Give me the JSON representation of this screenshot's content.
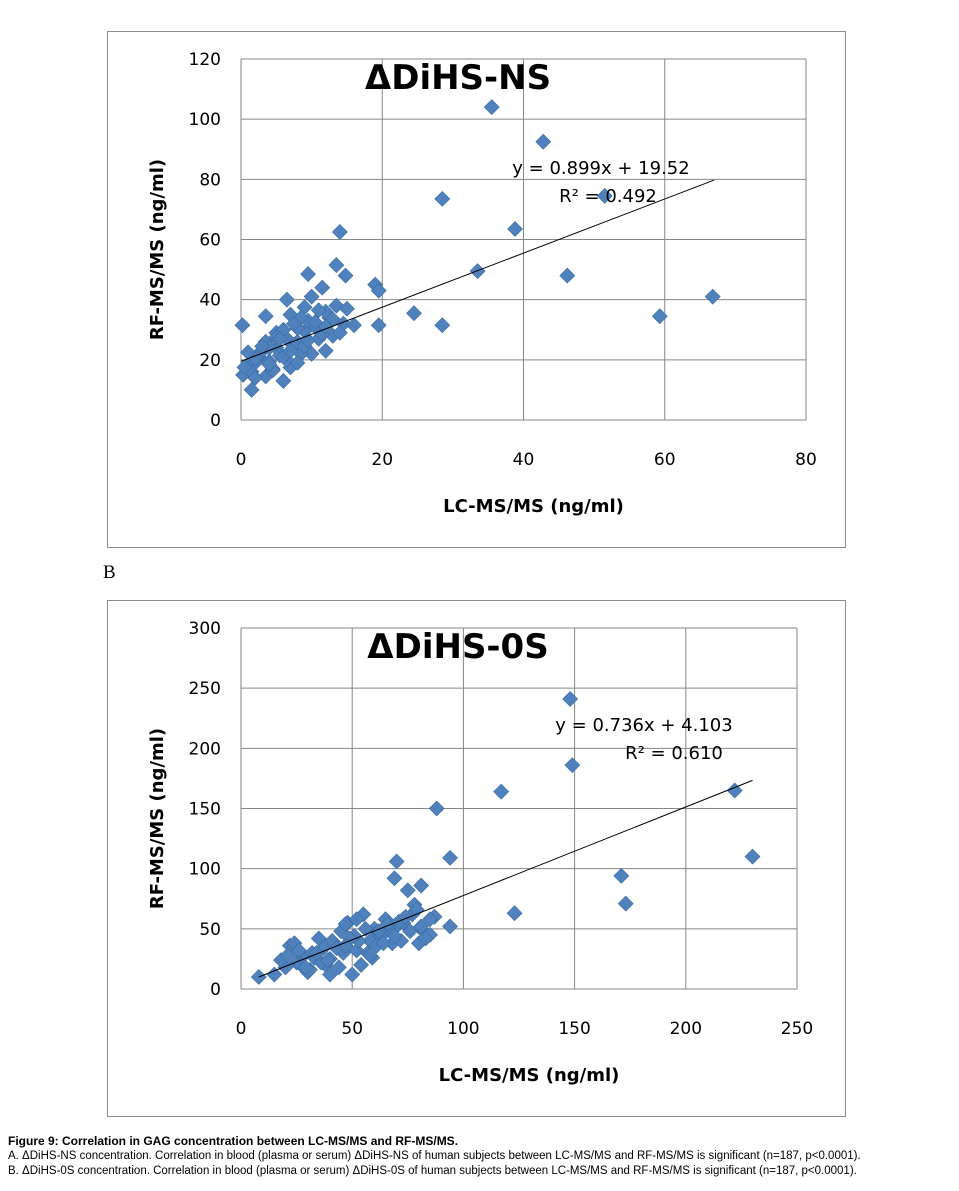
{
  "charts": [
    {
      "panel": "",
      "chart_data": {
        "type": "scatter",
        "title": "ΔDiHS-NS",
        "xlabel": "LC-MS/MS (ng/ml)",
        "ylabel": "RF-MS/MS (ng/ml)",
        "xlim": [
          0,
          80
        ],
        "ylim": [
          0,
          120
        ],
        "xticks": [
          "0",
          "20",
          "40",
          "60",
          "80"
        ],
        "yticks": [
          "0",
          "20",
          "40",
          "60",
          "80",
          "100",
          "120"
        ],
        "grid": true,
        "legend": "none",
        "marker_color": "#4f81bd",
        "trendline": {
          "slope": 0.899,
          "intercept": 19.52,
          "x_range": [
            0,
            67
          ],
          "equation": "y = 0.899x + 19.52",
          "r2": "R² = 0.492"
        },
        "series": [
          {
            "x": [
              35.5,
              42.8,
              51.5,
              28.5,
              38.8,
              33.5,
              46.2,
              24.5,
              28.5,
              59.3,
              66.8,
              14.0,
              9.5,
              13.5,
              14.8,
              19.0,
              19.5,
              19.5,
              0.2,
              0.3,
              1.5,
              3.5,
              6.0,
              7.0,
              10.0,
              12.0,
              13.0,
              14.5,
              16.0,
              11.5,
              2.5,
              4.0,
              5.0,
              6.5,
              8.0,
              9.0,
              10.5,
              12.5,
              1.0,
              3.0,
              4.5,
              5.5,
              7.5,
              8.5,
              11.0,
              12.0,
              2.0,
              3.5,
              5.0,
              6.5,
              8.0,
              9.5,
              11.5,
              13.5,
              1.5,
              2.5,
              4.0,
              6.0,
              7.0,
              9.0,
              10.5,
              0.5,
              2.0,
              3.0,
              5.0,
              6.5,
              8.5,
              10.0,
              1.0,
              3.5,
              5.5,
              7.5,
              9.0,
              11.0,
              13.0,
              14.0,
              15.0,
              4.5,
              6.0,
              8.0,
              2.0,
              4.0,
              7.0,
              9.5,
              12.0
            ],
            "y": [
              104.0,
              92.5,
              74.5,
              73.5,
              63.5,
              49.5,
              48.0,
              35.5,
              31.5,
              34.5,
              41.0,
              62.5,
              48.5,
              51.5,
              48.0,
              45.0,
              43.0,
              31.5,
              31.5,
              15.0,
              10.0,
              14.5,
              13.0,
              17.5,
              22.0,
              23.0,
              28.0,
              32.0,
              31.5,
              44.0,
              21.0,
              19.5,
              24.0,
              27.0,
              26.0,
              29.5,
              31.0,
              34.0,
              18.0,
              23.0,
              17.0,
              21.5,
              25.0,
              22.0,
              27.0,
              36.0,
              19.0,
              26.0,
              29.0,
              20.0,
              30.5,
              33.0,
              28.5,
              38.0,
              16.0,
              22.0,
              24.0,
              30.0,
              35.0,
              37.5,
              32.5,
              17.5,
              20.5,
              24.5,
              27.5,
              40.0,
              34.0,
              41.0,
              22.5,
              34.5,
              27.0,
              32.0,
              24.5,
              36.5,
              33.5,
              29.0,
              37.0,
              16.5,
              21.0,
              19.0,
              14.0,
              18.5,
              23.0,
              26.5,
              31.0
            ]
          }
        ]
      }
    },
    {
      "panel": "B",
      "chart_data": {
        "type": "scatter",
        "title": "ΔDiHS-0S",
        "xlabel": "LC-MS/MS (ng/ml)",
        "ylabel": "RF-MS/MS (ng/ml)",
        "xlim": [
          0,
          250
        ],
        "ylim": [
          0,
          300
        ],
        "xticks": [
          "0",
          "50",
          "100",
          "150",
          "200",
          "250"
        ],
        "yticks": [
          "0",
          "50",
          "100",
          "150",
          "200",
          "250",
          "300"
        ],
        "grid": true,
        "legend": "none",
        "marker_color": "#4f81bd",
        "trendline": {
          "slope": 0.736,
          "intercept": 4.103,
          "x_range": [
            8,
            230
          ],
          "equation": "y = 0.736x + 4.103",
          "r2": "R² = 0.610"
        },
        "series": [
          {
            "x": [
              148,
              149,
              117,
              88,
              94,
              70,
              69,
              81,
              222,
              230,
              171,
              173,
              123,
              94,
              8,
              15,
              20,
              22,
              25,
              28,
              30,
              32,
              35,
              38,
              40,
              42,
              45,
              48,
              50,
              52,
              55,
              58,
              60,
              62,
              65,
              68,
              70,
              72,
              75,
              78,
              80,
              82,
              85,
              87,
              18,
              24,
              27,
              33,
              37,
              44,
              47,
              53,
              57,
              63,
              67,
              73,
              77,
              83,
              21,
              26,
              31,
              36,
              41,
              46,
              51,
              56,
              61,
              66,
              71,
              76,
              81,
              29,
              34,
              39,
              43,
              49,
              54,
              59,
              64,
              69,
              74,
              79,
              52,
              58,
              47,
              85,
              40,
              62
            ],
            "y": [
              241,
              186,
              164,
              150,
              109,
              106,
              92,
              86,
              165,
              110,
              94,
              71,
              63,
              52,
              10,
              12,
              18,
              36,
              22,
              28,
              14,
              30,
              42,
              20,
              25,
              38,
              48,
              55,
              12,
              32,
              62,
              40,
              50,
              45,
              58,
              38,
              52,
              40,
              82,
              70,
              38,
              48,
              45,
              60,
              24,
              38,
              20,
              26,
              34,
              18,
              54,
              40,
              30,
              44,
              48,
              55,
              62,
              42,
              28,
              32,
              16,
              22,
              40,
              30,
              44,
              50,
              36,
              54,
              56,
              48,
              52,
              18,
              30,
              24,
              34,
              42,
              20,
              26,
              38,
              44,
              60,
              66,
              58,
              28,
              36,
              58,
              12,
              48
            ]
          }
        ]
      }
    }
  ],
  "caption": {
    "title": "Figure 9: Correlation in GAG concentration between LC-MS/MS and RF-MS/MS.",
    "line_a": "A. ΔDiHS-NS concentration. Correlation in blood (plasma or serum) ΔDiHS-NS of human subjects between LC-MS/MS and RF-MS/MS is significant (n=187, p<0.0001).",
    "line_b": "B. ΔDiHS-0S concentration. Correlation in blood (plasma or serum) ΔDiHS-0S of human subjects between LC-MS/MS and RF-MS/MS is significant (n=187, p<0.0001)."
  }
}
